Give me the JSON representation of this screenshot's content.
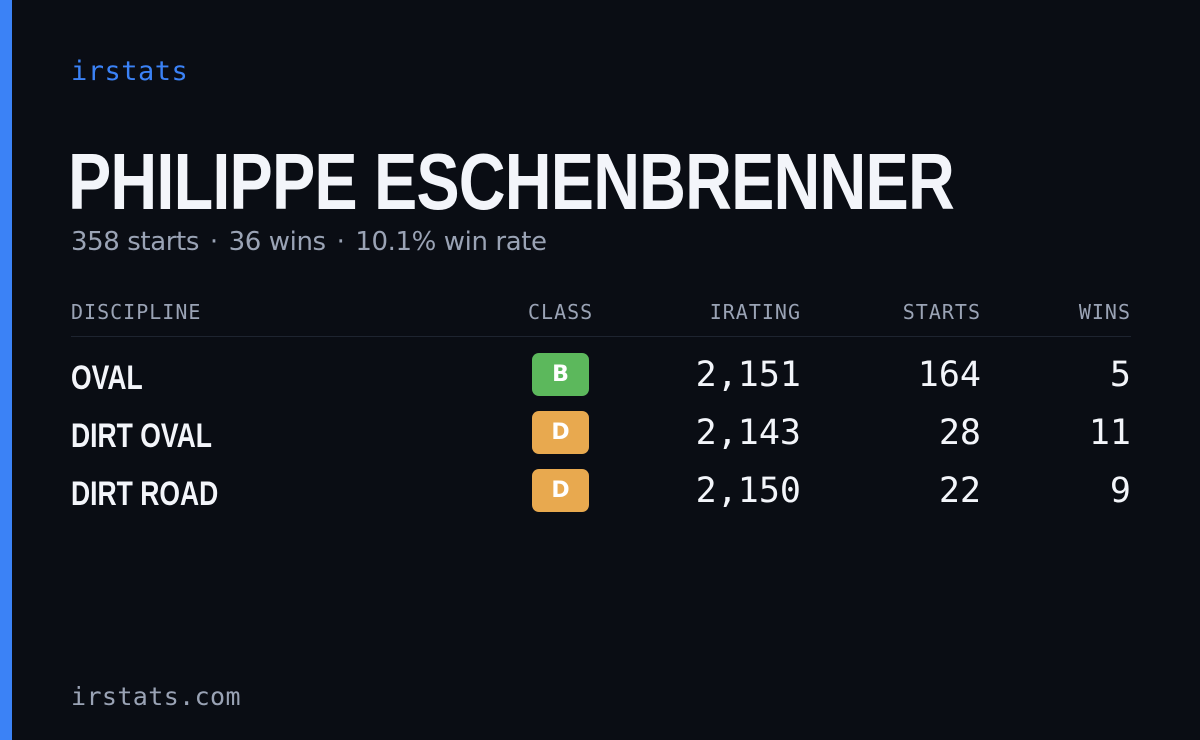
{
  "brand": "irstats",
  "player": {
    "name": "PHILIPPE ESCHENBRENNER"
  },
  "summary": {
    "starts": "358 starts",
    "wins": "36 wins",
    "win_rate": "10.1% win rate",
    "separator": "·"
  },
  "table": {
    "headers": {
      "discipline": "DISCIPLINE",
      "class": "CLASS",
      "irating": "IRATING",
      "starts": "STARTS",
      "wins": "WINS"
    },
    "rows": [
      {
        "discipline": "OVAL",
        "class": "B",
        "class_color": "#5cb85c",
        "irating": "2,151",
        "starts": "164",
        "wins": "5"
      },
      {
        "discipline": "DIRT OVAL",
        "class": "D",
        "class_color": "#e8a94f",
        "irating": "2,143",
        "starts": "28",
        "wins": "11"
      },
      {
        "discipline": "DIRT ROAD",
        "class": "D",
        "class_color": "#e8a94f",
        "irating": "2,150",
        "starts": "22",
        "wins": "9"
      }
    ]
  },
  "footer": {
    "url": "irstats.com"
  },
  "colors": {
    "accent": "#3b82f6",
    "background": "#0a0d14",
    "text_primary": "#f3f5fa",
    "text_muted": "#9aa3b5"
  }
}
